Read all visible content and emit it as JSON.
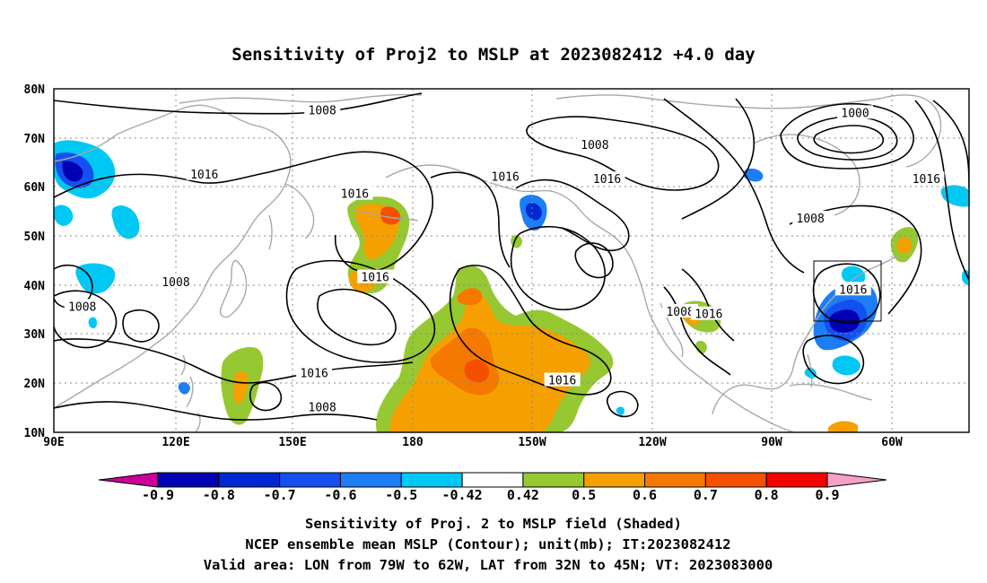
{
  "title": "Sensitivity of Proj2 to MSLP at 2023082412 +4.0 day",
  "lat_labels": [
    "80N",
    "70N",
    "60N",
    "50N",
    "40N",
    "30N",
    "20N",
    "10N"
  ],
  "lon_labels": [
    "90E",
    "120E",
    "150E",
    "180",
    "150W",
    "120W",
    "90W",
    "60W"
  ],
  "contour_labels": [
    {
      "text": "1008",
      "lon": 156,
      "lat": 75.5
    },
    {
      "text": "1016",
      "lon": 127,
      "lat": 62.5
    },
    {
      "text": "1016",
      "lon": 164,
      "lat": 58.5
    },
    {
      "text": "1016",
      "lon": 169,
      "lat": 41.5
    },
    {
      "text": "1008",
      "lon": 120,
      "lat": 40.5
    },
    {
      "text": "1008",
      "lon": 97,
      "lat": 35.5
    },
    {
      "text": "1016",
      "lon": 154,
      "lat": 22
    },
    {
      "text": "1008",
      "lon": 156,
      "lat": 15
    },
    {
      "text": "1016",
      "lon": -145,
      "lat": 20.5
    },
    {
      "text": "1016",
      "lon": -159,
      "lat": 62
    },
    {
      "text": "1016",
      "lon": -134,
      "lat": 61.5
    },
    {
      "text": "1008",
      "lon": -137,
      "lat": 68.5
    },
    {
      "text": "1000",
      "lon": -73,
      "lat": 75
    },
    {
      "text": "1008",
      "lon": -84,
      "lat": 53.5
    },
    {
      "text": "1016",
      "lon": -55.5,
      "lat": 61.5
    },
    {
      "text": "1008",
      "lon": -116,
      "lat": 34.5
    },
    {
      "text": "1016",
      "lon": -109,
      "lat": 34
    },
    {
      "text": "1016",
      "lon": -73.5,
      "lat": 39
    }
  ],
  "colorbar": {
    "labels": [
      "-0.9",
      "-0.8",
      "-0.7",
      "-0.6",
      "-0.5",
      "-0.42",
      "0.42",
      "0.5",
      "0.6",
      "0.7",
      "0.8",
      "0.9"
    ],
    "colors": [
      "#cc0099",
      "#0000b4",
      "#0028d2",
      "#1450f0",
      "#1c7df5",
      "#00c8f5",
      "#ffffff",
      "#96c832",
      "#f5a000",
      "#f57800",
      "#f55000",
      "#f50000",
      "#f5a0c8"
    ]
  },
  "caption": {
    "line1": "Sensitivity of Proj. 2 to MSLP field (Shaded)",
    "line2": "NCEP ensemble mean MSLP (Contour); unit(mb); IT:2023082412",
    "line3": "Valid area: LON from 79W to 62W, LAT from 32N to 45N; VT: 2023083000"
  }
}
